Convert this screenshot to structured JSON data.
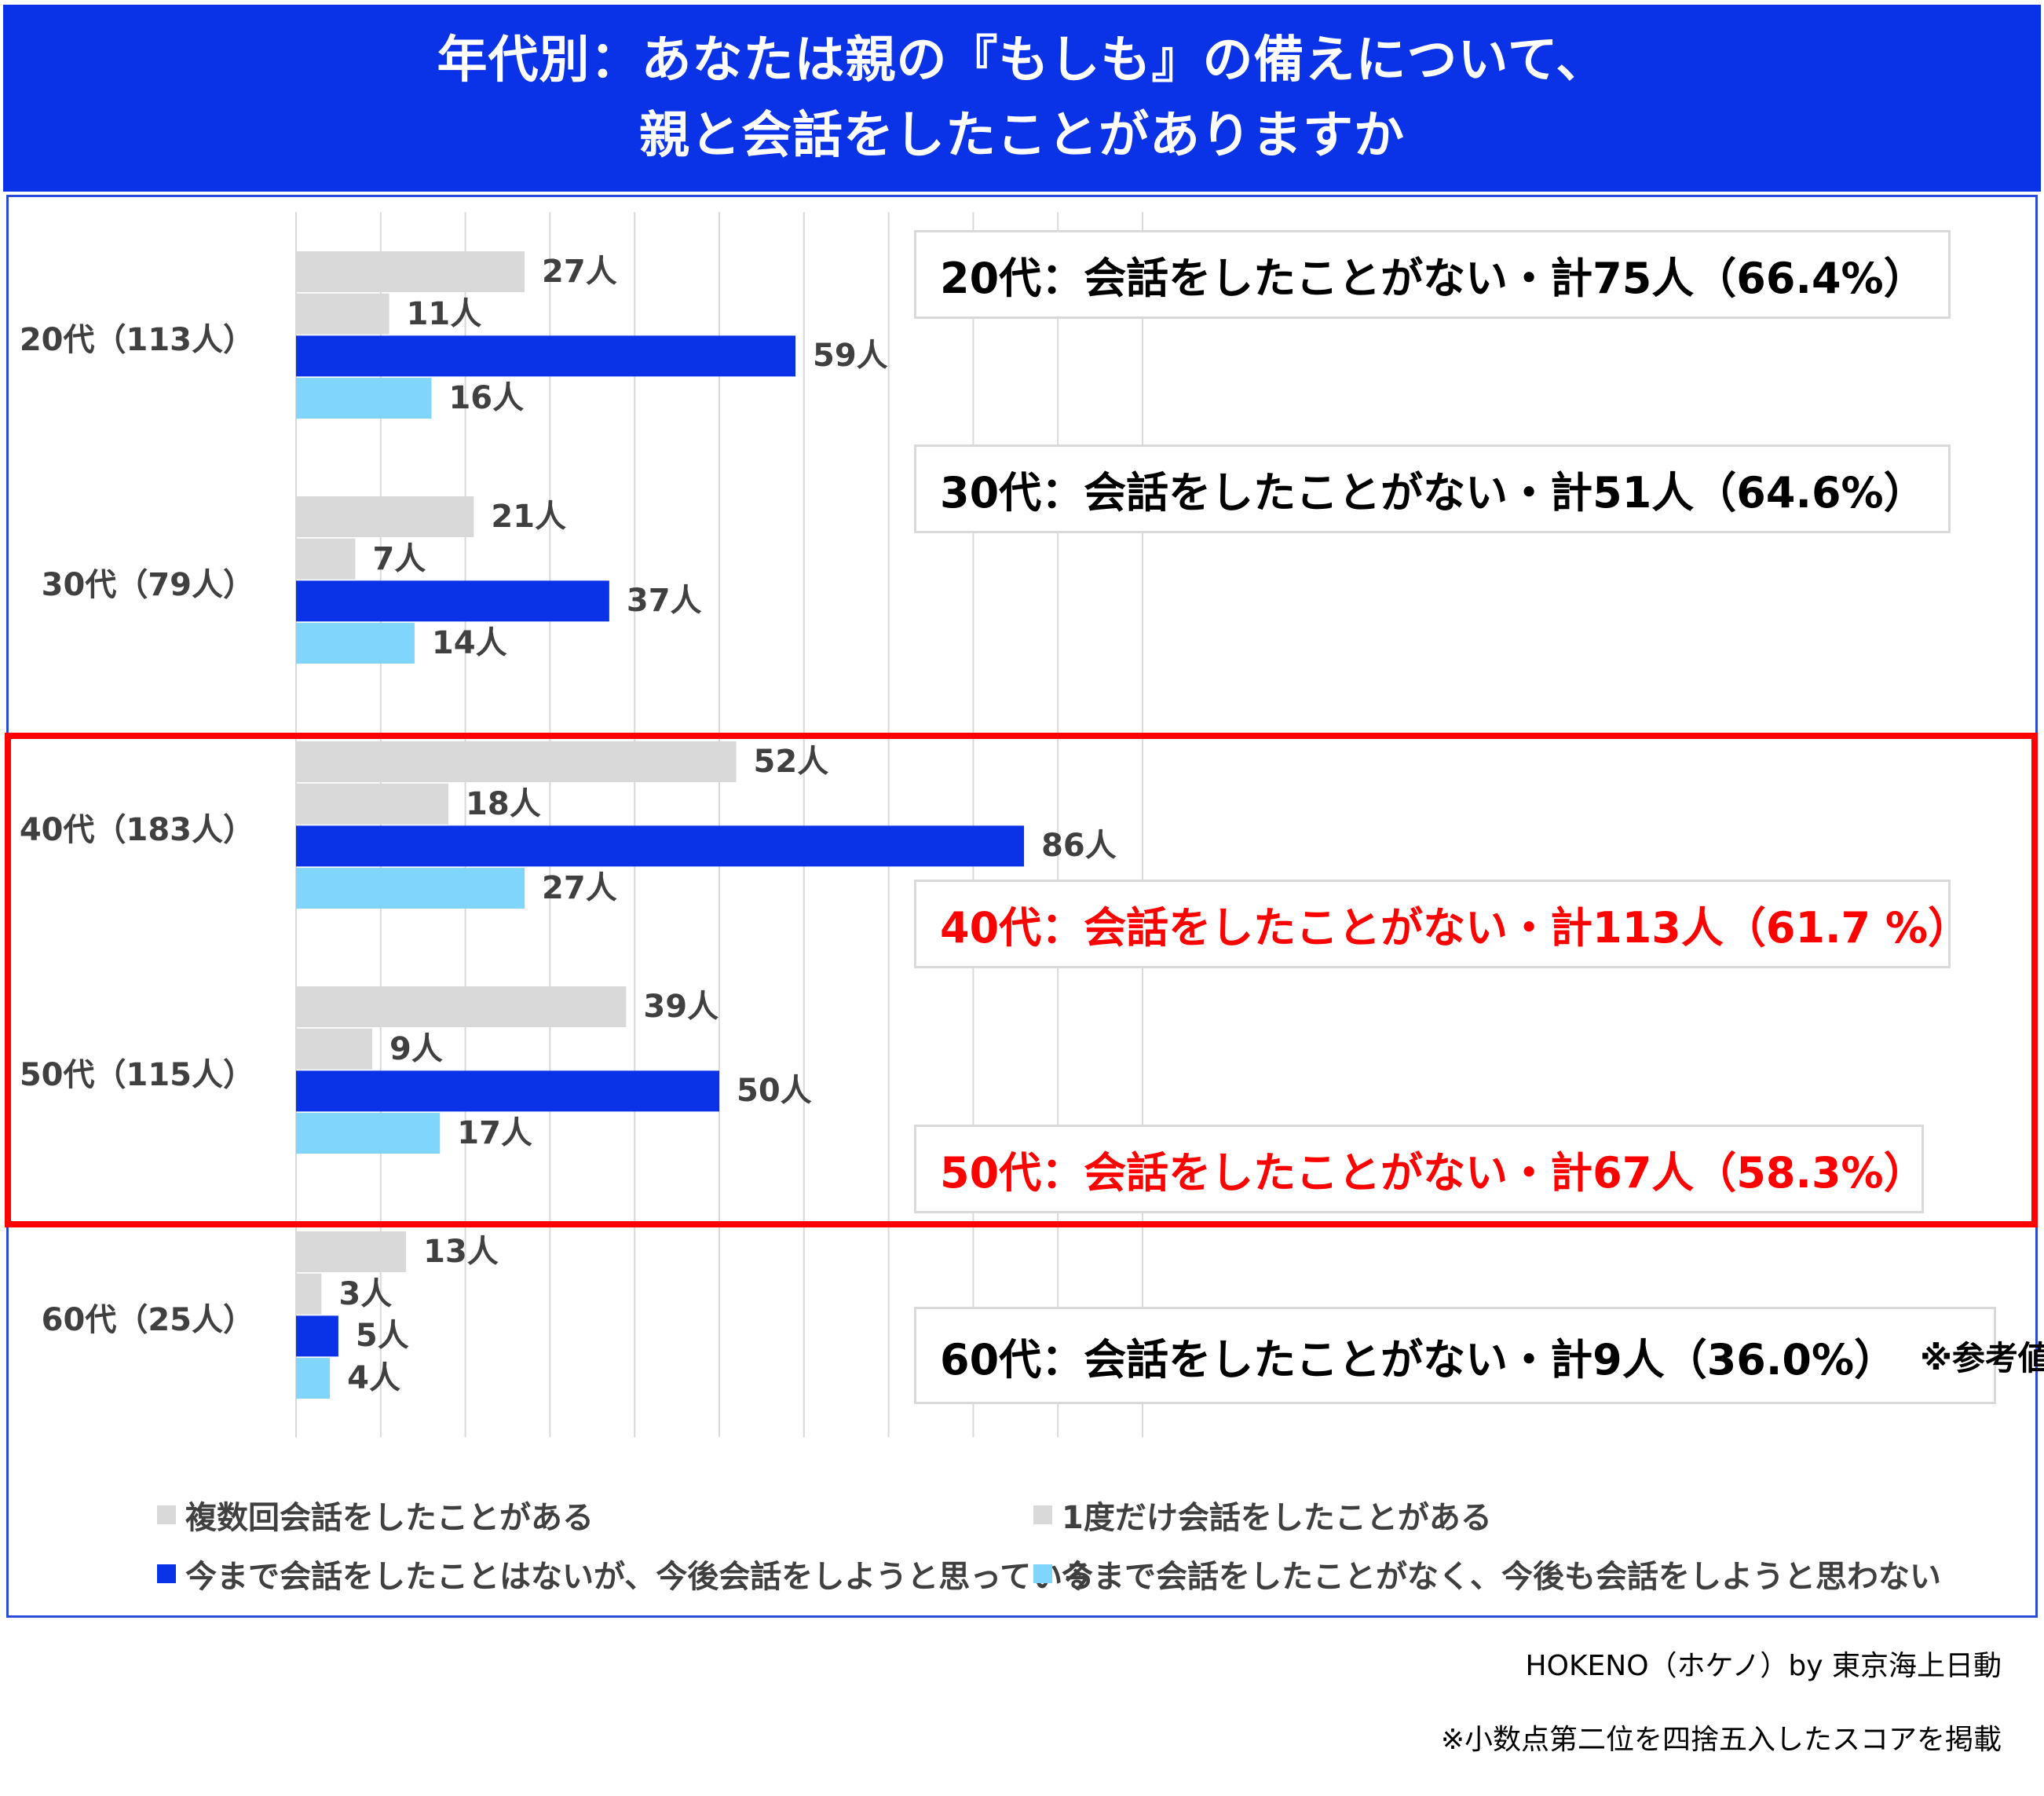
{
  "title": {
    "line1": "年代別：あなたは親の『もしも』の備えについて、",
    "line2": "親と会話をしたことがありますか"
  },
  "colors": {
    "title_bg": "#0a32e6",
    "series": [
      "#d9d9d9",
      "#d9d9d9",
      "#0a32e6",
      "#7fd5fb"
    ],
    "highlight": "#ff0000"
  },
  "chart_data": {
    "type": "bar",
    "orientation": "horizontal",
    "categories": [
      "20代（113人）",
      "30代（79人）",
      "40代（183人）",
      "50代（115人）",
      "60代（25人）"
    ],
    "series": [
      {
        "name": "複数回会話をしたことがある",
        "values": [
          27,
          21,
          52,
          39,
          13
        ]
      },
      {
        "name": "1度だけ会話をしたことがある",
        "values": [
          11,
          7,
          18,
          9,
          3
        ]
      },
      {
        "name": "今まで会話をしたことはないが、今後会話をしようと思っている",
        "values": [
          59,
          37,
          86,
          50,
          5
        ]
      },
      {
        "name": "今まで会話をしたことがなく、今後も会話をしようと思わない",
        "values": [
          16,
          14,
          27,
          17,
          4
        ]
      }
    ],
    "value_labels": [
      [
        "27人",
        "11人",
        "59人",
        "16人"
      ],
      [
        "21人",
        "7人",
        "37人",
        "14人"
      ],
      [
        "52人",
        "18人",
        "86人",
        "27人"
      ],
      [
        "39人",
        "9人",
        "50人",
        "17人"
      ],
      [
        "13人",
        "3人",
        "5人",
        "4人"
      ]
    ],
    "xlim": [
      0,
      100
    ],
    "grid": true,
    "legend_position": "bottom"
  },
  "callouts": [
    {
      "text": "20代：会話をしたことがない・計75人（66.4%）",
      "note": "",
      "emphasis": false
    },
    {
      "text": "30代：会話をしたことがない・計51人（64.6%）",
      "note": "",
      "emphasis": false
    },
    {
      "text": "40代：会話をしたことがない・計113人（61.7 %）",
      "note": "",
      "emphasis": true
    },
    {
      "text": "50代：会話をしたことがない・計67人（58.3%）",
      "note": "",
      "emphasis": true
    },
    {
      "text": "60代：会話をしたことがない・計9人（36.0%）",
      "note": "※参考値",
      "emphasis": false
    }
  ],
  "footer": {
    "source": "HOKENO（ホケノ）by 東京海上日動",
    "note": "※小数点第二位を四捨五入したスコアを掲載"
  }
}
